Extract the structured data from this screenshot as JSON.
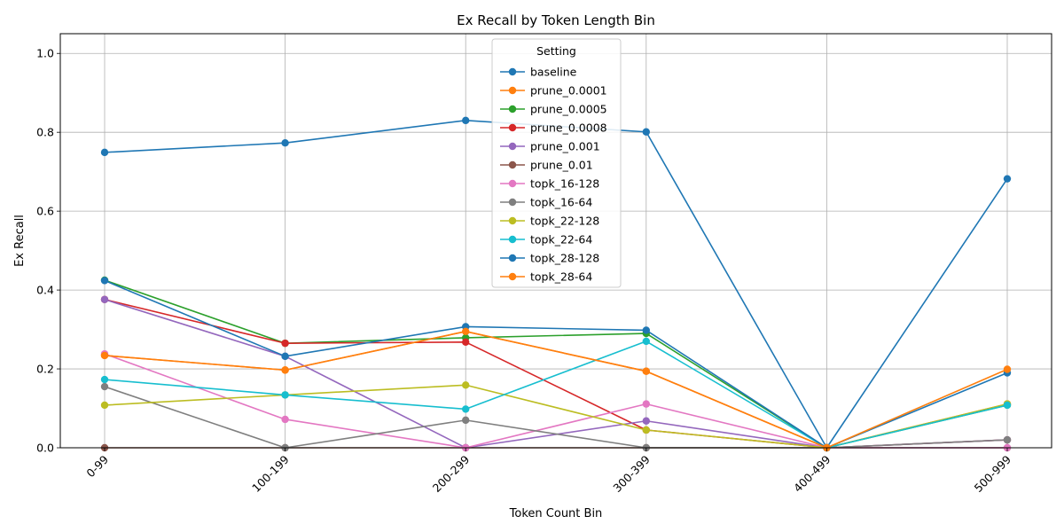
{
  "chart_data": {
    "type": "line",
    "title": "Ex Recall by Token Length Bin",
    "xlabel": "Token Count Bin",
    "ylabel": "Ex Recall",
    "categories": [
      "0-99",
      "100-199",
      "200-299",
      "300-399",
      "400-499",
      "500-999"
    ],
    "ylim": [
      0,
      1.05
    ],
    "yticks": [
      "0.0",
      "0.2",
      "0.4",
      "0.6",
      "0.8",
      "1.0"
    ],
    "grid": true,
    "legend": {
      "title": "Setting",
      "placement": "top-center"
    },
    "series": [
      {
        "name": "baseline",
        "color": "#1f77b4",
        "values": [
          0.749,
          0.773,
          0.83,
          0.801,
          0.0,
          0.682
        ]
      },
      {
        "name": "prune_0.0001",
        "color": "#ff7f0e",
        "values": [
          0.234,
          0.197,
          0.295,
          0.194,
          0.0,
          0.111
        ]
      },
      {
        "name": "prune_0.0005",
        "color": "#2ca02c",
        "values": [
          0.425,
          0.265,
          0.279,
          0.29,
          0.0,
          0.108
        ]
      },
      {
        "name": "prune_0.0008",
        "color": "#d62728",
        "values": [
          0.376,
          0.265,
          0.268,
          0.045,
          0.0,
          0.02
        ]
      },
      {
        "name": "prune_0.001",
        "color": "#9467bd",
        "values": [
          0.376,
          0.232,
          0.0,
          0.068,
          0.0,
          0.02
        ]
      },
      {
        "name": "prune_0.01",
        "color": "#8c564b",
        "values": [
          0.0,
          0.0,
          0.0,
          0.0,
          0.0,
          0.0
        ]
      },
      {
        "name": "topk_16-128",
        "color": "#e377c2",
        "values": [
          0.238,
          0.072,
          0.0,
          0.111,
          0.0,
          0.0
        ]
      },
      {
        "name": "topk_16-64",
        "color": "#7f7f7f",
        "values": [
          0.155,
          0.0,
          0.07,
          0.0,
          0.0,
          0.02
        ]
      },
      {
        "name": "topk_22-128",
        "color": "#bcbd22",
        "values": [
          0.108,
          0.134,
          0.159,
          0.045,
          0.0,
          0.111
        ]
      },
      {
        "name": "topk_22-64",
        "color": "#17becf",
        "values": [
          0.173,
          0.134,
          0.098,
          0.27,
          0.0,
          0.108
        ]
      },
      {
        "name": "topk_28-128",
        "color": "#1f77b4",
        "values": [
          0.424,
          0.232,
          0.307,
          0.298,
          0.0,
          0.19
        ]
      },
      {
        "name": "topk_28-64",
        "color": "#ff7f0e",
        "values": [
          0.234,
          0.197,
          0.295,
          0.194,
          0.0,
          0.199
        ]
      }
    ]
  }
}
